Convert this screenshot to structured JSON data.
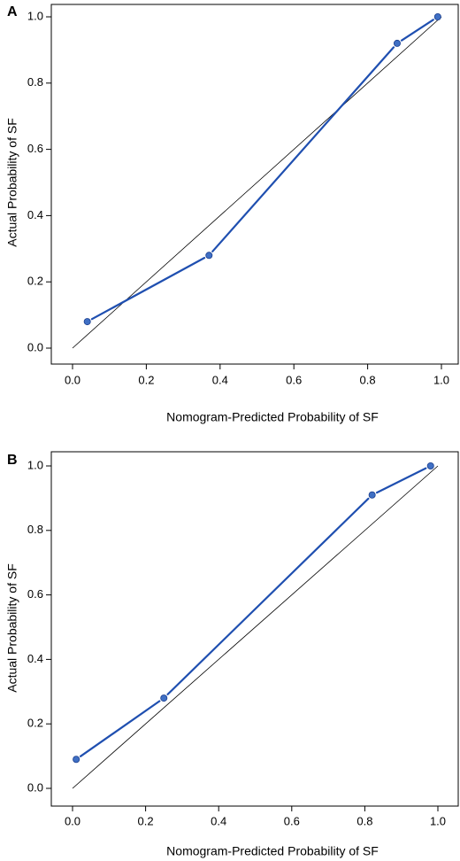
{
  "chart_data": [
    {
      "type": "line",
      "panel_label": "A",
      "xlabel": "Nomogram-Predicted Probability of SF",
      "ylabel": "Actual Probability of SF",
      "xlim": [
        0.0,
        1.0
      ],
      "ylim": [
        0.0,
        1.0
      ],
      "xticks": [
        "0.0",
        "0.2",
        "0.4",
        "0.6",
        "0.8",
        "1.0"
      ],
      "yticks": [
        "0.0",
        "0.2",
        "0.4",
        "0.6",
        "0.8",
        "1.0"
      ],
      "grid": false,
      "legend": "none",
      "reference_line": {
        "x": [
          0.0,
          1.0
        ],
        "y": [
          0.0,
          1.0
        ],
        "color": "#000000"
      },
      "series": [
        {
          "x": [
            0.04,
            0.37,
            0.88,
            0.99
          ],
          "y": [
            0.08,
            0.28,
            0.92,
            1.0
          ],
          "color": "#1f4fb0",
          "marker_color": "#3f6fc4"
        }
      ]
    },
    {
      "type": "line",
      "panel_label": "B",
      "xlabel": "Nomogram-Predicted Probability of SF",
      "ylabel": "Actual Probability of SF",
      "xlim": [
        0.0,
        1.0
      ],
      "ylim": [
        0.0,
        1.0
      ],
      "xticks": [
        "0.0",
        "0.2",
        "0.4",
        "0.6",
        "0.8",
        "1.0"
      ],
      "yticks": [
        "0.0",
        "0.2",
        "0.4",
        "0.6",
        "0.8",
        "1.0"
      ],
      "grid": false,
      "legend": "none",
      "reference_line": {
        "x": [
          0.0,
          1.0
        ],
        "y": [
          0.0,
          1.0
        ],
        "color": "#000000"
      },
      "series": [
        {
          "x": [
            0.01,
            0.25,
            0.82,
            0.98
          ],
          "y": [
            0.09,
            0.28,
            0.91,
            1.0
          ],
          "color": "#1f4fb0",
          "marker_color": "#3f6fc4"
        }
      ]
    }
  ]
}
